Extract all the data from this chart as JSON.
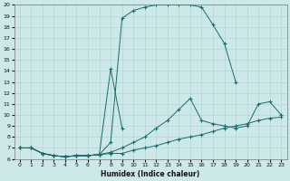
{
  "xlabel": "Humidex (Indice chaleur)",
  "bg_color": "#cce8e8",
  "line_color": "#1a6b6b",
  "xlim": [
    -0.5,
    23.5
  ],
  "ylim": [
    6,
    20
  ],
  "xticks": [
    0,
    1,
    2,
    3,
    4,
    5,
    6,
    7,
    8,
    9,
    10,
    11,
    12,
    13,
    14,
    15,
    16,
    17,
    18,
    19,
    20,
    21,
    22,
    23
  ],
  "yticks": [
    6,
    7,
    8,
    9,
    10,
    11,
    12,
    13,
    14,
    15,
    16,
    17,
    18,
    19,
    20
  ],
  "series": [
    {
      "x": [
        0,
        1,
        2,
        3,
        4,
        5,
        6,
        7,
        8,
        9,
        10,
        11,
        12,
        13,
        14,
        15,
        16,
        17,
        18,
        19,
        20,
        21,
        22,
        23
      ],
      "y": [
        7.0,
        7.0,
        6.5,
        6.3,
        6.2,
        6.3,
        6.3,
        6.4,
        6.5,
        6.5,
        6.8,
        7.0,
        7.2,
        7.5,
        7.8,
        8.0,
        8.2,
        8.5,
        8.8,
        9.0,
        9.2,
        9.5,
        9.7,
        9.8
      ]
    },
    {
      "x": [
        0,
        1,
        2,
        3,
        4,
        5,
        6,
        7,
        8,
        9,
        10,
        11,
        12,
        13,
        14,
        15,
        16,
        17,
        18,
        19,
        20,
        21,
        22,
        23
      ],
      "y": [
        7.0,
        7.0,
        6.5,
        6.3,
        6.2,
        6.3,
        6.3,
        6.4,
        6.6,
        7.0,
        7.5,
        8.0,
        8.8,
        9.5,
        10.5,
        11.5,
        9.5,
        9.2,
        9.0,
        8.8,
        9.0,
        11.0,
        11.2,
        10.0
      ]
    },
    {
      "x": [
        0,
        1,
        2,
        3,
        4,
        5,
        6,
        7,
        8,
        9,
        10,
        11,
        12,
        13,
        14,
        15,
        16,
        17,
        18,
        19,
        20
      ],
      "y": [
        7.0,
        7.0,
        6.5,
        6.3,
        6.2,
        6.3,
        6.3,
        6.4,
        7.5,
        18.8,
        19.5,
        19.8,
        20.0,
        20.0,
        20.0,
        20.0,
        19.8,
        18.2,
        16.5,
        13.0,
        null
      ]
    },
    {
      "x": [
        0,
        1,
        2,
        3,
        4,
        5,
        6,
        7,
        8,
        9
      ],
      "y": [
        7.0,
        7.0,
        6.5,
        6.3,
        6.2,
        6.3,
        6.3,
        6.4,
        14.2,
        8.8
      ]
    }
  ]
}
